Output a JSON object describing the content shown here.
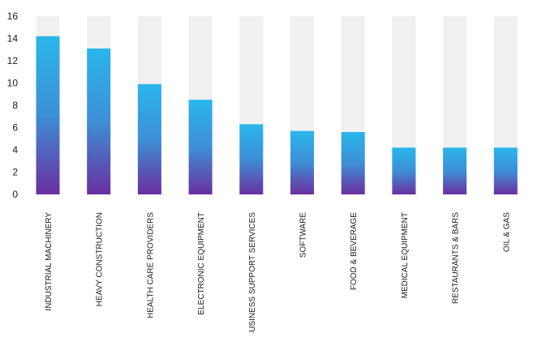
{
  "chart_data": {
    "type": "bar",
    "categories": [
      "INDUSTRIAL MACHINERY",
      "HEAVY CONSTRUCTION",
      "HEALTH CARE PROVIDERS",
      "ELECTRONIC EQUIPMENT",
      "BUSINESS SUPPORT SERVICES",
      "SOFTWARE",
      "FOOD & BEVERAGE",
      "MEDICAL EQUIPMENT",
      "RESTAURANTS & BARS",
      "OIL & GAS"
    ],
    "values": [
      14.2,
      13.1,
      9.9,
      8.5,
      6.3,
      5.7,
      5.6,
      4.2,
      4.2,
      4.2
    ],
    "ylim": [
      0,
      16
    ],
    "yticks": [
      "0",
      "2",
      "4",
      "6",
      "8",
      "10",
      "12",
      "14",
      "16"
    ],
    "background_bar_value": 16,
    "grid": false,
    "legend": "none",
    "colors": {
      "bar_top": "#29b6ec",
      "bar_mid": "#3d8fd6",
      "bar_bottom": "#6a2fa0",
      "background_bar": "#f0f0f0",
      "axis_text": "#1a1a1a"
    }
  }
}
